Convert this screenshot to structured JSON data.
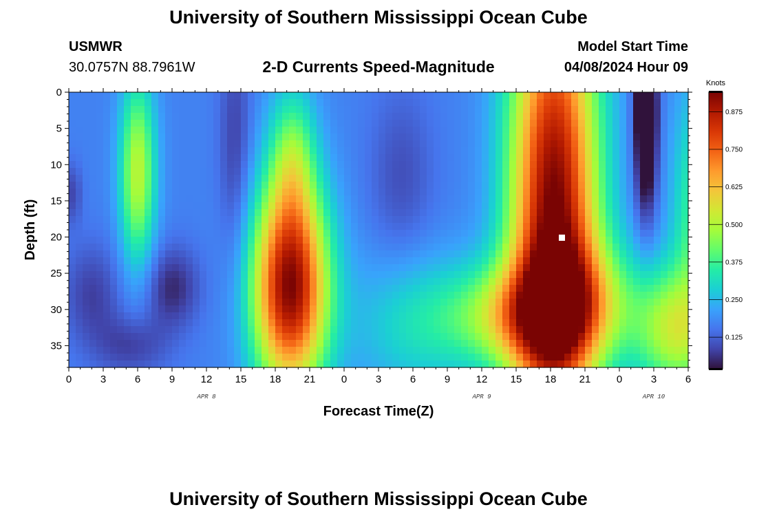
{
  "page": {
    "title_top": "University of Southern Mississippi Ocean Cube",
    "title_bottom": "University of Southern Mississippi Ocean Cube",
    "station": "USMWR",
    "coords": "30.0757N  88.7961W",
    "model_start_label": "Model Start Time",
    "model_start_value": "04/08/2024 Hour 09"
  },
  "chart_data": {
    "type": "heatmap",
    "title": "2-D Currents Speed-Magnitude",
    "xlabel": "Forecast Time(Z)",
    "ylabel": "Depth (ft)",
    "x_ticks": [
      "0",
      "3",
      "6",
      "9",
      "12",
      "15",
      "18",
      "21",
      "0",
      "3",
      "6",
      "9",
      "12",
      "15",
      "18",
      "21",
      "0",
      "3",
      "6"
    ],
    "x_range_hours": [
      0,
      54
    ],
    "y_ticks": [
      "0",
      "5",
      "10",
      "15",
      "20",
      "25",
      "30",
      "35"
    ],
    "y_range": [
      0,
      38
    ],
    "y_inverted": true,
    "date_labels": [
      {
        "label": "APR 8",
        "hour": 12
      },
      {
        "label": "APR 9",
        "hour": 36
      },
      {
        "label": "APR 10",
        "hour": 51
      }
    ],
    "colorbar": {
      "unit_label": "Knots",
      "ticks": [
        "0.125",
        "0.250",
        "0.375",
        "0.500",
        "0.625",
        "0.750",
        "0.875"
      ],
      "range": [
        0.02,
        0.94
      ],
      "colors": [
        "#30123b",
        "#4145ab",
        "#4675ed",
        "#39a2fc",
        "#1bcfd4",
        "#24eca6",
        "#61fc6c",
        "#a4fc3b",
        "#d1e834",
        "#f3c63a",
        "#fe9b2d",
        "#f36315",
        "#d93806",
        "#b11901",
        "#7a0403"
      ]
    },
    "speed_field": {
      "base": 0.17,
      "blobs": [
        {
          "t": 6.0,
          "d": 11,
          "st": 1.1,
          "sd": 9,
          "a": 0.34
        },
        {
          "t": 19.3,
          "d": 27,
          "st": 2.3,
          "sd": 10,
          "a": 0.76
        },
        {
          "t": 19.5,
          "d": 9,
          "st": 1.4,
          "sd": 7,
          "a": 0.22
        },
        {
          "t": 30.0,
          "d": 32,
          "st": 3.8,
          "sd": 7,
          "a": 0.13
        },
        {
          "t": 39.0,
          "d": 31,
          "st": 4.2,
          "sd": 5,
          "a": 0.32
        },
        {
          "t": 44.5,
          "d": 29,
          "st": 3.8,
          "sd": 6,
          "a": 0.27
        },
        {
          "t": 42.3,
          "d": 17,
          "st": 2.7,
          "sd": 24,
          "a": 0.78
        },
        {
          "t": 52.8,
          "d": 33,
          "st": 2.4,
          "sd": 6,
          "a": 0.32
        },
        {
          "t": 54.5,
          "d": 17,
          "st": 1.4,
          "sd": 12,
          "a": 0.2
        },
        {
          "t": 9.0,
          "d": 27,
          "st": 1.7,
          "sd": 4,
          "a": -0.12
        },
        {
          "t": 2.0,
          "d": 28,
          "st": 1.8,
          "sd": 5,
          "a": -0.09
        },
        {
          "t": 5.5,
          "d": 35,
          "st": 2.2,
          "sd": 3,
          "a": -0.09
        },
        {
          "t": 14.5,
          "d": 8,
          "st": 1.0,
          "sd": 12,
          "a": -0.09
        },
        {
          "t": 29.0,
          "d": 12,
          "st": 2.0,
          "sd": 9,
          "a": -0.07
        },
        {
          "t": 0.3,
          "d": 14,
          "st": 0.6,
          "sd": 3,
          "a": -0.08
        },
        {
          "t": 50.3,
          "d": 4,
          "st": 0.7,
          "sd": 9,
          "a": -0.3
        },
        {
          "t": 50.3,
          "d": 2,
          "st": 0.5,
          "sd": 3,
          "a": -0.09
        }
      ]
    }
  }
}
